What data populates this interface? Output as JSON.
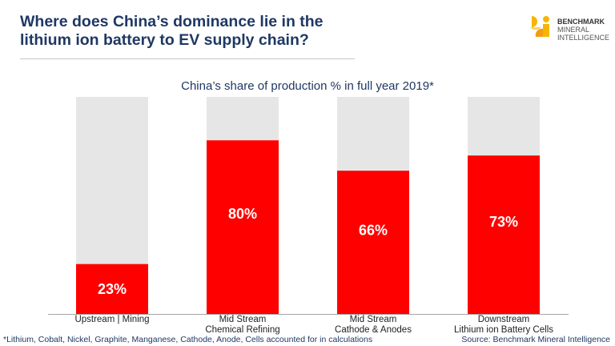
{
  "header": {
    "title": "Where does China’s dominance lie in the lithium ion battery to EV supply chain?",
    "logo": {
      "line1": "BENCHMARK",
      "line2": "MINERAL",
      "line3": "INTELLIGENCE"
    }
  },
  "chart_data": {
    "type": "bar",
    "stacked": true,
    "title": "China’s share of production % in full year 2019*",
    "categories": [
      [
        "Upstream | Mining"
      ],
      [
        "Mid Stream",
        "Chemical Refining"
      ],
      [
        "Mid Stream",
        "Cathode & Anodes"
      ],
      [
        "Downstream",
        "Lithium ion Battery Cells"
      ]
    ],
    "values": [
      23,
      80,
      66,
      73
    ],
    "labels": [
      "23%",
      "80%",
      "66%",
      "73%"
    ],
    "ylim": [
      0,
      100
    ],
    "grid": false,
    "colors": {
      "china": "#ff0000",
      "rest": "#e6e6e6"
    }
  },
  "footer": {
    "note": "*Lithium, Cobalt, Nickel, Graphite, Manganese, Cathode, Anode, Cells accounted for in calculations",
    "source": "Source: Benchmark Mineral Intelligence"
  }
}
